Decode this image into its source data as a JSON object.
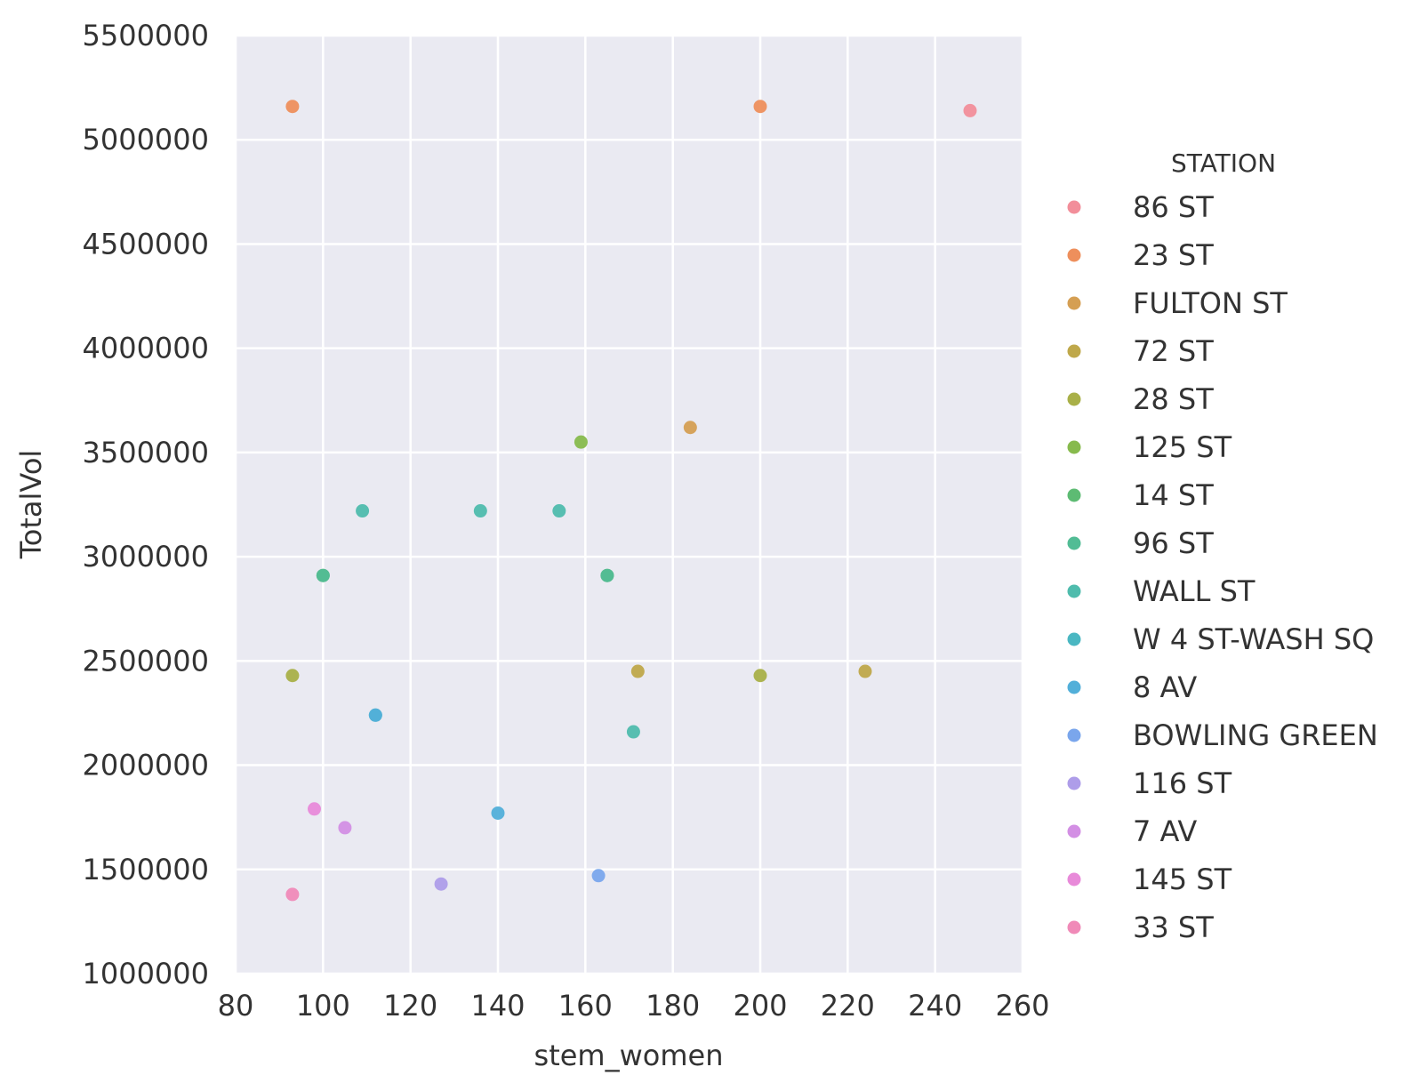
{
  "chart_data": {
    "type": "scatter",
    "xlabel": "stem_women",
    "ylabel": "TotalVol",
    "xlim": [
      80,
      260
    ],
    "ylim": [
      1000000,
      5500000
    ],
    "xticks": [
      "80",
      "100",
      "120",
      "140",
      "160",
      "180",
      "200",
      "220",
      "240",
      "260"
    ],
    "yticks": [
      "1000000",
      "1500000",
      "2000000",
      "2500000",
      "3000000",
      "3500000",
      "4000000",
      "4500000",
      "5000000",
      "5500000"
    ],
    "grid": true,
    "legend": {
      "title": "STATION",
      "position": "right"
    },
    "series": [
      {
        "name": "86 ST",
        "color": "#f28e9a",
        "points": [
          [
            248,
            5140000
          ]
        ]
      },
      {
        "name": "23 ST",
        "color": "#ee8f5c",
        "points": [
          [
            93,
            5160000
          ],
          [
            200,
            5160000
          ]
        ]
      },
      {
        "name": "FULTON ST",
        "color": "#d59f53",
        "points": [
          [
            184,
            3620000
          ]
        ]
      },
      {
        "name": "72 ST",
        "color": "#bfa84a",
        "points": [
          [
            172,
            2450000
          ],
          [
            224,
            2450000
          ]
        ]
      },
      {
        "name": "28 ST",
        "color": "#a9b048",
        "points": [
          [
            93,
            2430000
          ],
          [
            200,
            2430000
          ]
        ]
      },
      {
        "name": "125 ST",
        "color": "#87ba4d",
        "points": [
          [
            159,
            3550000
          ]
        ]
      },
      {
        "name": "14 ST",
        "color": "#5dbb73",
        "points": [
          [
            100,
            2910000
          ],
          [
            165,
            2910000
          ]
        ]
      },
      {
        "name": "96 ST",
        "color": "#52bc95",
        "points": [
          [
            100,
            2910000
          ],
          [
            165,
            2910000
          ]
        ]
      },
      {
        "name": "WALL ST",
        "color": "#4fbcad",
        "points": [
          [
            109,
            3220000
          ],
          [
            136,
            3220000
          ],
          [
            154,
            3220000
          ],
          [
            171,
            2160000
          ]
        ]
      },
      {
        "name": "W 4 ST-WASH SQ",
        "color": "#4ab7c2",
        "points": [
          [
            112,
            2240000
          ]
        ]
      },
      {
        "name": "8 AV",
        "color": "#52afd9",
        "points": [
          [
            112,
            2240000
          ],
          [
            140,
            1770000
          ]
        ]
      },
      {
        "name": "BOWLING GREEN",
        "color": "#7aa6ec",
        "points": [
          [
            163,
            1470000
          ]
        ]
      },
      {
        "name": "116 ST",
        "color": "#ae9de9",
        "points": [
          [
            127,
            1430000
          ]
        ]
      },
      {
        "name": "7 AV",
        "color": "#d38fe4",
        "points": [
          [
            105,
            1700000
          ]
        ]
      },
      {
        "name": "145 ST",
        "color": "#e88ad9",
        "points": [
          [
            98,
            1790000
          ]
        ]
      },
      {
        "name": "33 ST",
        "color": "#f08ab8",
        "points": [
          [
            93,
            1380000
          ]
        ]
      }
    ]
  }
}
